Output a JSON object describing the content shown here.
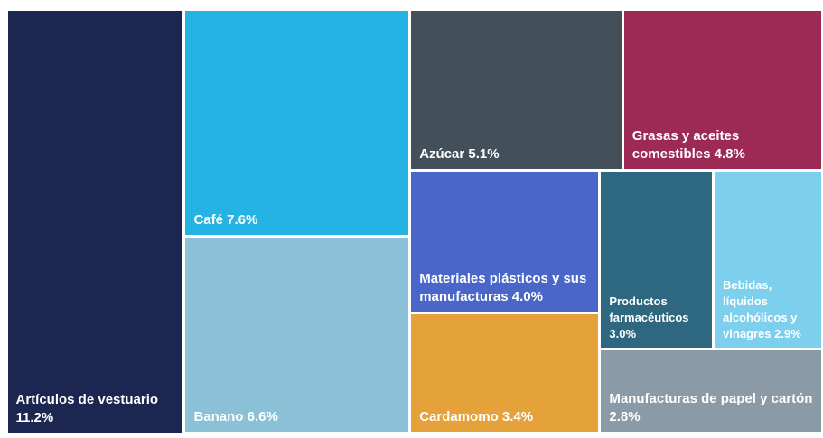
{
  "chart_data": {
    "type": "treemap",
    "categories": [
      "Artículos de vestuario",
      "Café",
      "Banano",
      "Azúcar",
      "Grasas y aceites comestibles",
      "Materiales plásticos y sus manufacturas",
      "Cardamomo",
      "Productos farmacéuticos",
      "Bebidas, líquidos alcohólicos y vinagres",
      "Manufacturas de papel y cartón"
    ],
    "values": [
      11.2,
      7.6,
      6.6,
      5.1,
      4.8,
      4.0,
      3.4,
      3.0,
      2.9,
      2.8
    ],
    "value_labels": [
      "11.2%",
      "7.6%",
      "6.6%",
      "5.1%",
      "4.8%",
      "4.0%",
      "3.4%",
      "3.0%",
      "2.9%",
      "2.8%"
    ],
    "colors": [
      "#1b2651",
      "#25b3e3",
      "#8bc1d6",
      "#43505a",
      "#9c2a55",
      "#4a66c8",
      "#e5a23a",
      "#2e6880",
      "#7dcfee",
      "#8a9ba7"
    ]
  }
}
